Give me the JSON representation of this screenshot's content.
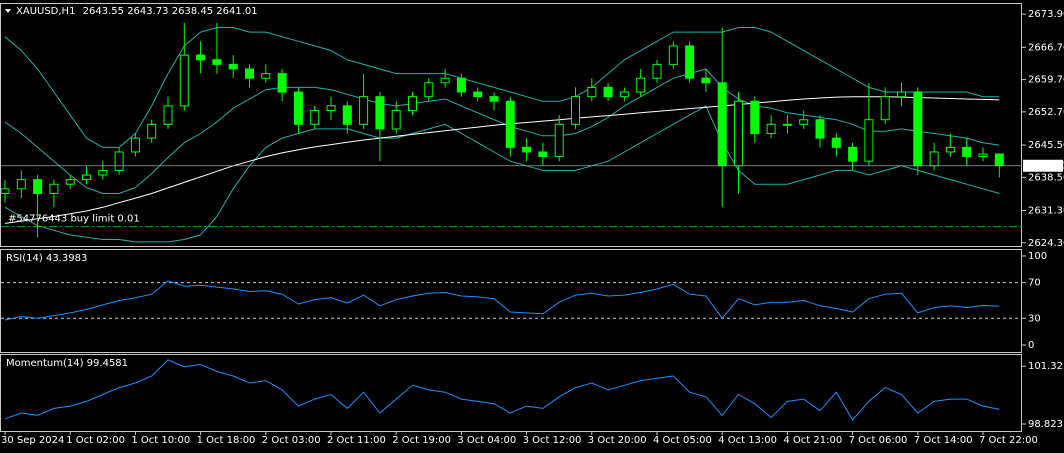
{
  "chart_data": [
    {
      "type": "candlestick",
      "symbol": "XAUUSD,H1",
      "categories": [
        "30 Sep 2024",
        null,
        null,
        null,
        "1 Oct 02:00",
        null,
        null,
        null,
        "1 Oct 10:00",
        null,
        null,
        null,
        "1 Oct 18:00",
        null,
        null,
        null,
        "2 Oct 03:00",
        null,
        null,
        null,
        "2 Oct 11:00",
        null,
        null,
        null,
        "2 Oct 19:00",
        null,
        null,
        null,
        "3 Oct 04:00",
        null,
        null,
        null,
        "3 Oct 12:00",
        null,
        null,
        null,
        "3 Oct 20:00",
        null,
        null,
        null,
        "4 Oct 05:00",
        null,
        null,
        null,
        "4 Oct 13:00",
        null,
        null,
        null,
        "4 Oct 21:00",
        null,
        null,
        null,
        "7 Oct 06:00",
        null,
        null,
        null,
        "7 Oct 14:00",
        null,
        null,
        null,
        "7 Oct 22:00",
        null
      ],
      "open": [
        2635,
        2636,
        2638,
        2635,
        2637,
        2638,
        2639,
        2640,
        2644,
        2647,
        2650,
        2654,
        2665,
        2664,
        2663,
        2662,
        2660,
        2661,
        2657,
        2650,
        2653,
        2654,
        2650,
        2656,
        2649,
        2653,
        2656,
        2659,
        2660,
        2657,
        2656,
        2655,
        2645,
        2644,
        2643,
        2650,
        2656,
        2658,
        2656,
        2657,
        2660,
        2663,
        2667,
        2660,
        2659,
        2641,
        2655,
        2648,
        2650,
        2650,
        2651,
        2647,
        2645,
        2642,
        2651,
        2656,
        2657,
        2641,
        2644,
        2645,
        2643,
        2643.55
      ],
      "high": [
        2638,
        2640,
        2639,
        2638,
        2639,
        2641,
        2642,
        2645,
        2648,
        2651,
        2656,
        2672,
        2668,
        2672,
        2665,
        2663,
        2663,
        2662,
        2658,
        2654,
        2656,
        2655,
        2661,
        2657,
        2655,
        2657,
        2660,
        2662,
        2661,
        2658,
        2657,
        2656,
        2647,
        2646,
        2652,
        2658,
        2660,
        2659,
        2658,
        2662,
        2664,
        2668,
        2668,
        2662,
        2671,
        2657,
        2656,
        2652,
        2652,
        2653,
        2652,
        2648,
        2646,
        2659,
        2658,
        2659,
        2658,
        2646,
        2648,
        2647,
        2645,
        2643.73
      ],
      "low": [
        2633,
        2634,
        2625.5,
        2632,
        2636,
        2637,
        2638,
        2639,
        2643,
        2646,
        2649,
        2653,
        2661,
        2661,
        2660,
        2658,
        2659,
        2655,
        2648,
        2649,
        2651,
        2648,
        2649,
        2642,
        2648,
        2652,
        2655,
        2658,
        2656,
        2655,
        2653,
        2643,
        2642,
        2641,
        2642,
        2649,
        2655,
        2655,
        2655,
        2656,
        2659,
        2662,
        2659,
        2657,
        2632,
        2635,
        2646,
        2647,
        2648,
        2649,
        2645,
        2643,
        2640,
        2641,
        2650,
        2654,
        2639,
        2640,
        2643,
        2641,
        2642,
        2638.45
      ],
      "close": [
        2636,
        2638,
        2635,
        2637,
        2638,
        2639,
        2640,
        2644,
        2647,
        2650,
        2654,
        2665,
        2664,
        2663,
        2662,
        2660,
        2661,
        2657,
        2650,
        2653,
        2654,
        2650,
        2656,
        2649,
        2653,
        2656,
        2659,
        2660,
        2657,
        2656,
        2655,
        2645,
        2644,
        2643,
        2650,
        2656,
        2658,
        2656,
        2657,
        2660,
        2663,
        2667,
        2660,
        2659,
        2641,
        2655,
        2648,
        2650,
        2650,
        2651,
        2647,
        2645,
        2642,
        2651,
        2656,
        2657,
        2641,
        2644,
        2645,
        2643,
        2643.55,
        2641.01
      ],
      "color": "#00ff00",
      "series": [
        {
          "color": "#20b2aa",
          "values": [
            2669,
            2666,
            2662,
            2657,
            2652,
            2647,
            2645,
            2645,
            2648,
            2654,
            2661,
            2667,
            2670,
            2671,
            2671,
            2670,
            2670,
            2669,
            2668,
            2667,
            2666,
            2664,
            2663,
            2662,
            2661,
            2661,
            2661,
            2661,
            2660,
            2659,
            2658,
            2657,
            2656,
            2655,
            2655,
            2656,
            2658,
            2661,
            2664,
            2666,
            2668,
            2670,
            2670,
            2670,
            2670,
            2671,
            2671,
            2670,
            2668,
            2666,
            2664,
            2662,
            2660,
            2658,
            2657,
            2657,
            2657,
            2657,
            2657,
            2657,
            2656,
            2656
          ]
        },
        {
          "color": "#20b2aa",
          "values": [
            2650.5,
            2648,
            2645,
            2642,
            2639,
            2636.3,
            2635,
            2635,
            2636.3,
            2639.3,
            2642.8,
            2646,
            2648,
            2650.5,
            2653.5,
            2655.5,
            2657.5,
            2658,
            2658,
            2658,
            2657.5,
            2656.5,
            2655.5,
            2654.5,
            2654,
            2654.5,
            2655,
            2655.5,
            2654,
            2652.5,
            2651,
            2649.5,
            2648.5,
            2647.5,
            2647.5,
            2648,
            2649.5,
            2651.5,
            2654,
            2656,
            2658,
            2660,
            2661,
            2662,
            2658,
            2655.5,
            2654,
            2653.5,
            2652.5,
            2652,
            2651.5,
            2651,
            2650,
            2648.5,
            2648.5,
            2649,
            2648.5,
            2648,
            2647.5,
            2647,
            2646,
            2645.5
          ]
        },
        {
          "color": "#20b2aa",
          "values": [
            2632,
            2630,
            2628,
            2627,
            2626,
            2625.5,
            2625,
            2625,
            2624.5,
            2624.5,
            2624.5,
            2625,
            2626,
            2630,
            2636,
            2641,
            2645,
            2647,
            2648,
            2649,
            2649,
            2649,
            2648,
            2647,
            2647,
            2648,
            2649,
            2650,
            2648,
            2646,
            2644,
            2642,
            2641,
            2640,
            2640,
            2640,
            2641,
            2642,
            2644,
            2646,
            2648,
            2650,
            2652,
            2654,
            2646,
            2640,
            2637,
            2637,
            2637,
            2638,
            2639,
            2640,
            2640,
            2639,
            2640,
            2641,
            2640,
            2639,
            2638,
            2637,
            2636,
            2635
          ]
        },
        {
          "color": "#ffffff",
          "values": [
            2628.5,
            2629,
            2629.5,
            2630,
            2630.6,
            2631.2,
            2632,
            2633,
            2634,
            2635,
            2636.2,
            2637.4,
            2638.6,
            2639.8,
            2641,
            2642,
            2643,
            2643.8,
            2644.5,
            2645.1,
            2645.6,
            2646.1,
            2646.6,
            2647,
            2647.4,
            2647.8,
            2648.2,
            2648.6,
            2649,
            2649.4,
            2649.8,
            2650.1,
            2650.4,
            2650.7,
            2651,
            2651.3,
            2651.6,
            2651.9,
            2652.2,
            2652.5,
            2652.8,
            2653.1,
            2653.4,
            2653.7,
            2654,
            2654.3,
            2654.6,
            2654.9,
            2655.2,
            2655.5,
            2655.7,
            2655.9,
            2656,
            2656,
            2656,
            2655.9,
            2655.8,
            2655.7,
            2655.6,
            2655.5,
            2655.4,
            2655.3
          ]
        }
      ],
      "order": {
        "label": "#54776443 buy limit 0.01",
        "price": 2627.8,
        "color": "#00c000"
      },
      "ylim": [
        2623.6,
        2676.1
      ],
      "yticks": [
        {
          "value": 2624.3,
          "label": "2624.30"
        },
        {
          "value": 2631.3,
          "label": "2631.30"
        },
        {
          "value": 2638.5,
          "label": "2638.50"
        },
        {
          "value": 2645.5,
          "label": "2645.50"
        },
        {
          "value": 2652.7,
          "label": "2652.70"
        },
        {
          "value": 2659.7,
          "label": "2659.70"
        },
        {
          "value": 2666.7,
          "label": "2666.70"
        },
        {
          "value": 2673.9,
          "label": "2673.90"
        }
      ]
    },
    {
      "type": "line",
      "title": "RSI(14) 43.3983",
      "color": "#1e90ff",
      "values": [
        28,
        32,
        30,
        33,
        36,
        40,
        45,
        50,
        53,
        57,
        72,
        66,
        67,
        65,
        63,
        60,
        61,
        57,
        46,
        51,
        53,
        47,
        56,
        44,
        51,
        55,
        58,
        59,
        55,
        54,
        52,
        37,
        36,
        35,
        48,
        56,
        58,
        55,
        56,
        59,
        63,
        68,
        57,
        55,
        30,
        52,
        45,
        48,
        48,
        50,
        44,
        41,
        37,
        52,
        57,
        58,
        36,
        42,
        44,
        42,
        44.5,
        43.3983
      ],
      "ylim": [
        -7.9,
        106.7
      ],
      "yticks": [
        100,
        70,
        30,
        0
      ],
      "levels": [
        70,
        30
      ]
    },
    {
      "type": "line",
      "title": "Momentum(14) 99.4581",
      "color": "#1e90ff",
      "values": [
        99.05,
        99.3,
        99.2,
        99.5,
        99.6,
        99.8,
        100.1,
        100.4,
        100.6,
        100.9,
        101.6,
        101.3,
        101.4,
        101.1,
        100.9,
        100.6,
        100.7,
        100.3,
        99.6,
        99.9,
        100.1,
        99.5,
        100.2,
        99.3,
        99.9,
        100.5,
        100.3,
        100.2,
        99.9,
        99.8,
        99.7,
        99.3,
        99.6,
        99.5,
        100.0,
        100.4,
        100.6,
        100.3,
        100.5,
        100.7,
        100.8,
        100.9,
        100.2,
        100.0,
        99.2,
        100.1,
        99.7,
        99.1,
        99.8,
        99.9,
        99.4,
        100.2,
        99.0,
        99.8,
        100.4,
        100.1,
        99.3,
        99.8,
        99.9,
        99.9,
        99.6,
        99.4581
      ],
      "ylim": [
        98.52,
        101.81
      ],
      "yticks": [
        101.3232,
        98.8231
      ]
    }
  ]
}
